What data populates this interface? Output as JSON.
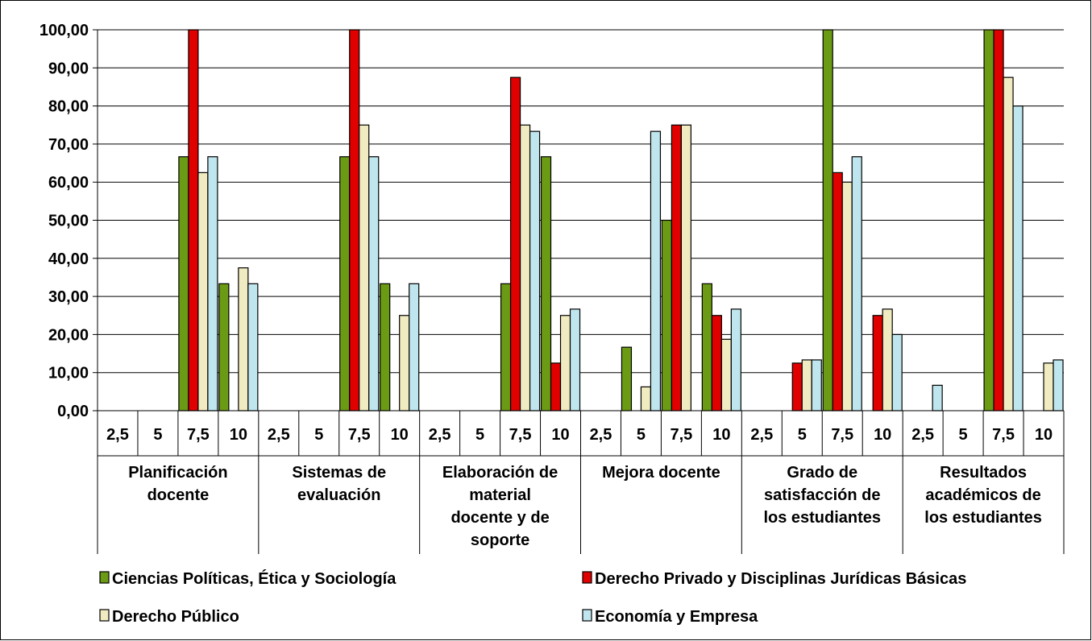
{
  "chart_data": {
    "type": "bar",
    "ylim": [
      0,
      100
    ],
    "y_tick_labels": [
      "0,00",
      "10,00",
      "20,00",
      "30,00",
      "40,00",
      "50,00",
      "60,00",
      "70,00",
      "80,00",
      "90,00",
      "100,00"
    ],
    "grid": true,
    "legend_position": "bottom",
    "groups": [
      {
        "label": [
          "Planificación",
          "docente"
        ],
        "categories": [
          "2,5",
          "5",
          "7,5",
          "10"
        ]
      },
      {
        "label": [
          "Sistemas de",
          "evaluación"
        ],
        "categories": [
          "2,5",
          "5",
          "7,5",
          "10"
        ]
      },
      {
        "label": [
          "Elaboración de",
          "material",
          "docente y de",
          "soporte"
        ],
        "categories": [
          "2,5",
          "5",
          "7,5",
          "10"
        ]
      },
      {
        "label": [
          "Mejora docente"
        ],
        "categories": [
          "2,5",
          "5",
          "7,5",
          "10"
        ]
      },
      {
        "label": [
          "Grado de",
          "satisfacción de",
          "los estudiantes"
        ],
        "categories": [
          "2,5",
          "5",
          "7,5",
          "10"
        ]
      },
      {
        "label": [
          "Resultados",
          "académicos de",
          "los estudiantes"
        ],
        "categories": [
          "2,5",
          "5",
          "7,5",
          "10"
        ]
      }
    ],
    "series": [
      {
        "name": "Ciencias Políticas, Ética y  Sociología",
        "color": "#6b9a15",
        "values": [
          0,
          0,
          66.67,
          33.33,
          0,
          0,
          66.67,
          33.33,
          0,
          0,
          33.33,
          66.67,
          0,
          16.67,
          50,
          33.33,
          0,
          0,
          100,
          0,
          0,
          0,
          100,
          0
        ]
      },
      {
        "name": "Derecho Privado y Disciplinas Jurídicas Básicas",
        "color": "#e00000",
        "values": [
          0,
          0,
          100,
          0,
          0,
          0,
          100,
          0,
          0,
          0,
          87.5,
          12.5,
          0,
          0,
          75,
          25,
          0,
          12.5,
          62.5,
          25,
          0,
          0,
          100,
          0
        ]
      },
      {
        "name": "Derecho Público",
        "color": "#f0ebc0",
        "values": [
          0,
          0,
          62.5,
          37.5,
          0,
          0,
          75,
          25,
          0,
          0,
          75,
          25,
          0,
          6.25,
          75,
          18.75,
          0,
          13.33,
          60,
          26.67,
          0,
          0,
          87.5,
          12.5
        ]
      },
      {
        "name": "Economía y Empresa",
        "color": "#bfe6ee",
        "values": [
          0,
          0,
          66.67,
          33.33,
          0,
          0,
          66.67,
          33.33,
          0,
          0,
          73.33,
          26.67,
          0,
          73.33,
          0,
          26.67,
          0,
          13.33,
          66.67,
          20,
          6.67,
          0,
          80,
          13.33
        ]
      }
    ]
  }
}
